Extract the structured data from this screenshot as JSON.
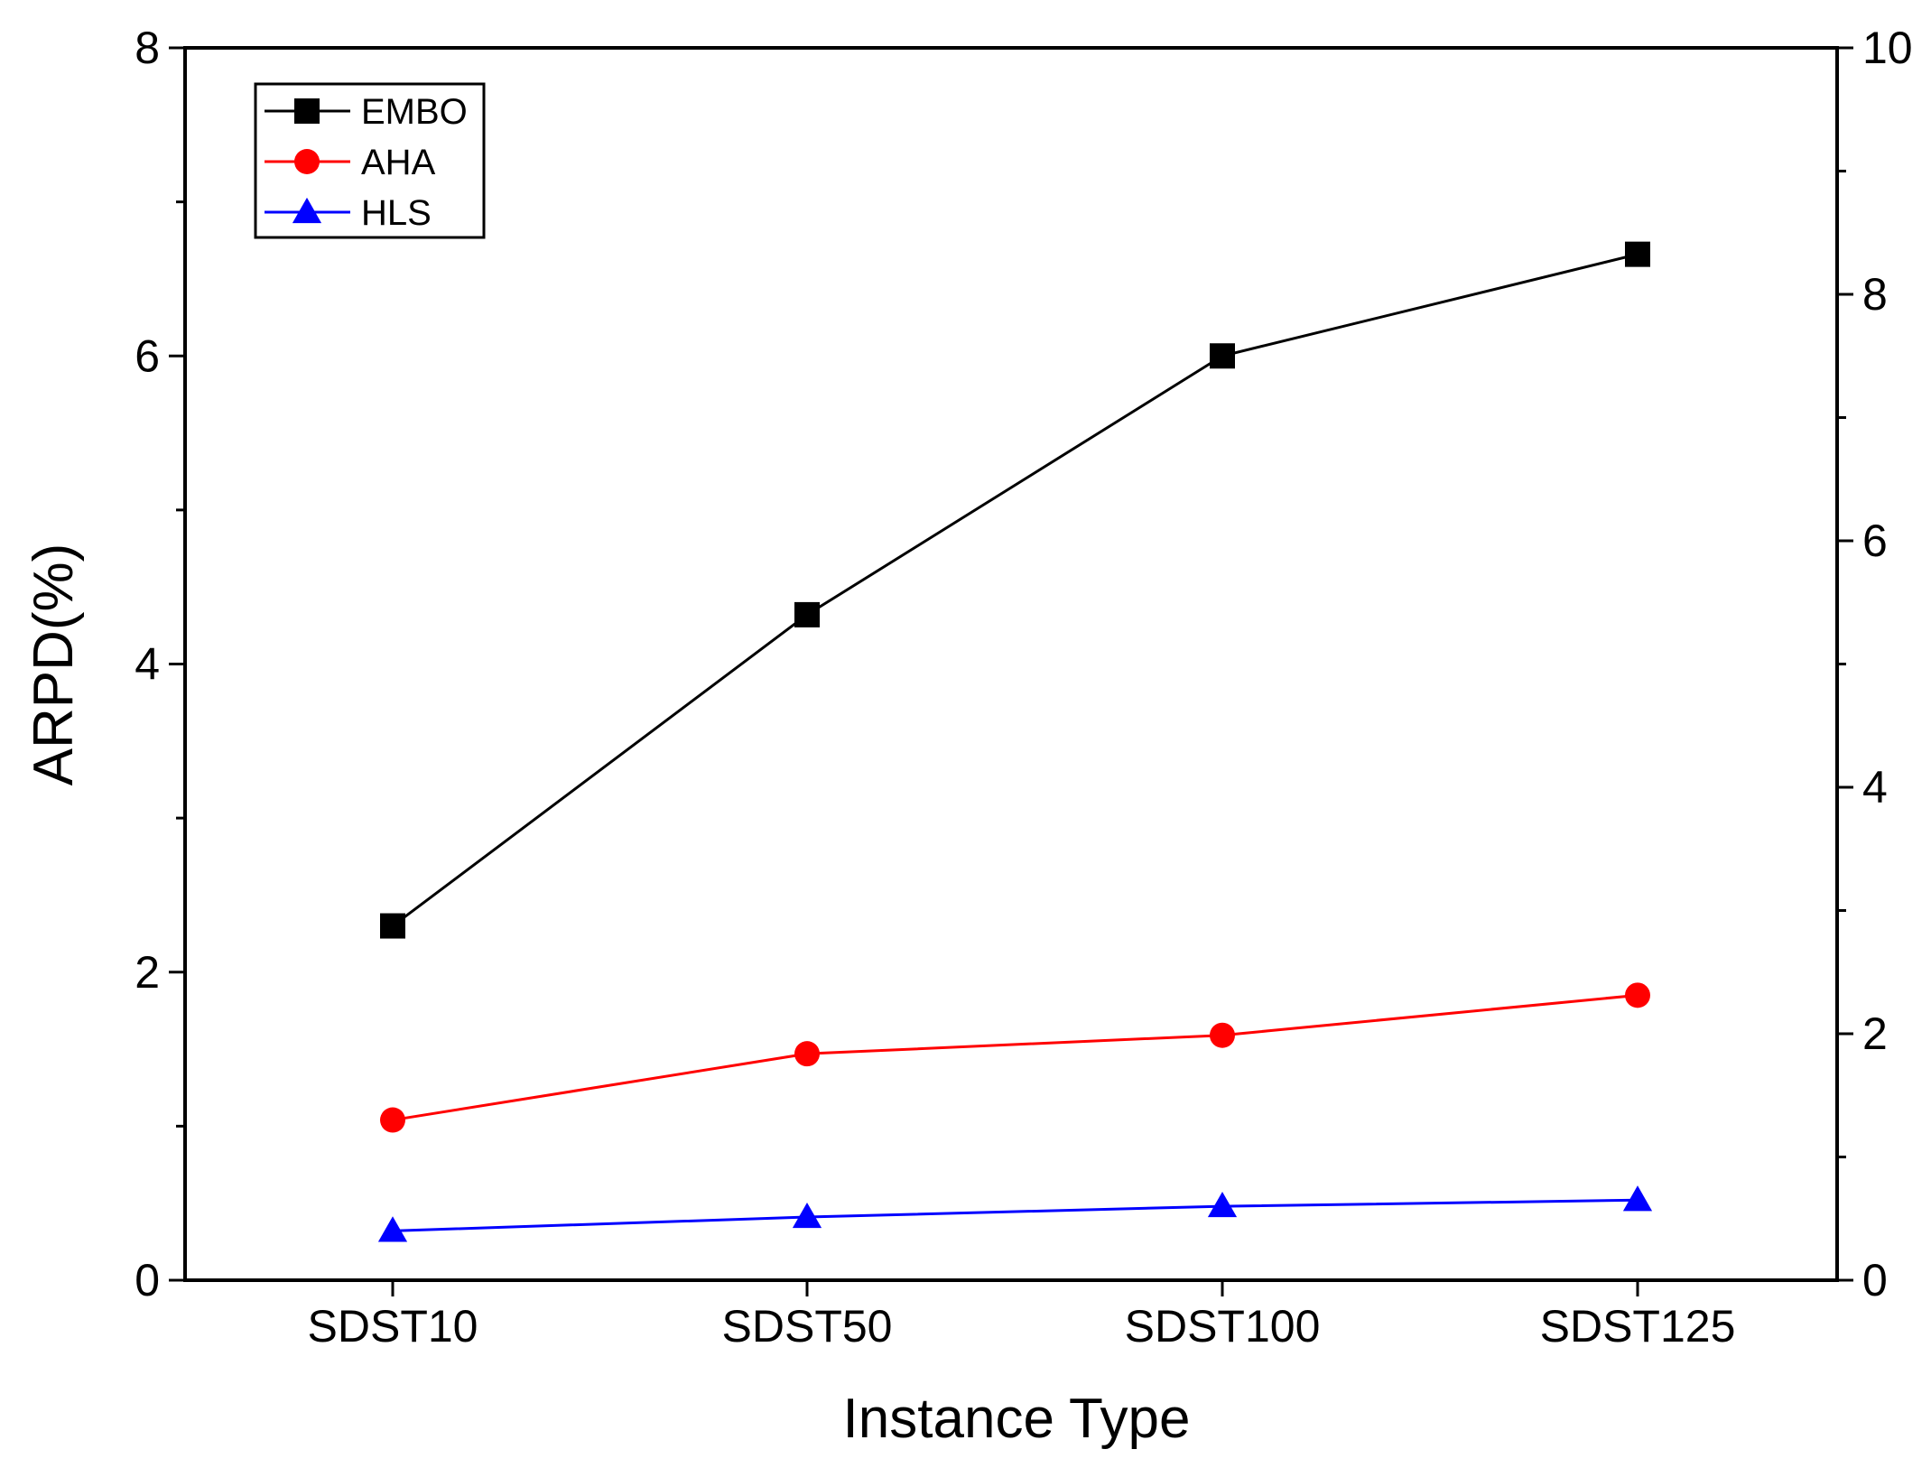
{
  "chart_data": {
    "type": "line",
    "title": "",
    "xlabel": "Instance Type",
    "ylabel": "ARPD(%)",
    "categories": [
      "SDST10",
      "SDST50",
      "SDST100",
      "SDST125"
    ],
    "ylim": [
      0,
      8
    ],
    "y_ticks": [
      0,
      2,
      4,
      6,
      8
    ],
    "y_ticks_labels": [
      "0",
      "2",
      "4",
      "6",
      "8"
    ],
    "y2lim": [
      0,
      10
    ],
    "y2_ticks": [
      0,
      2,
      4,
      6,
      8,
      10
    ],
    "y2_ticks_labels": [
      "0",
      "2",
      "4",
      "6",
      "8",
      "10"
    ],
    "grid": false,
    "legend_position": "top-left",
    "series": [
      {
        "name": "EMBO",
        "values": [
          2.3,
          4.32,
          6.0,
          6.66
        ],
        "color": "#000000",
        "marker": "square"
      },
      {
        "name": "AHA",
        "values": [
          1.04,
          1.47,
          1.59,
          1.85
        ],
        "color": "#ff0000",
        "marker": "circle"
      },
      {
        "name": "HLS",
        "values": [
          0.32,
          0.41,
          0.48,
          0.52
        ],
        "color": "#0000ff",
        "marker": "triangle"
      }
    ]
  }
}
